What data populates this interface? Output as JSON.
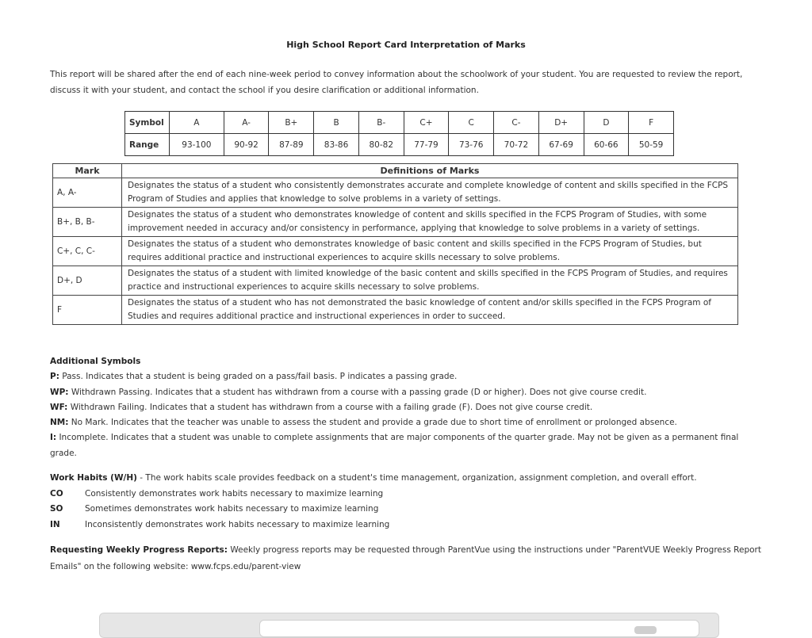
{
  "title": "High School Report Card Interpretation of Marks",
  "intro": "This report will be shared after the end of each nine-week period to convey information about the schoolwork of your student. You are requested to review the report, discuss it with your student, and contact the school if you desire clarification or additional information.",
  "grades": {
    "symbol_label": "Symbol",
    "range_label": "Range",
    "symbols": [
      "A",
      "A-",
      "B+",
      "B",
      "B-",
      "C+",
      "C",
      "C-",
      "D+",
      "D",
      "F"
    ],
    "ranges": [
      "93-100",
      "90-92",
      "87-89",
      "83-86",
      "80-82",
      "77-79",
      "73-76",
      "70-72",
      "67-69",
      "60-66",
      "50-59"
    ]
  },
  "marks": {
    "header_mark": "Mark",
    "header_def": "Definitions of Marks",
    "rows": [
      {
        "mark": "A, A-",
        "def": "Designates the status of a student who consistently demonstrates accurate and complete knowledge of content and skills specified in the FCPS Program of Studies and applies that knowledge to solve problems in a variety of settings."
      },
      {
        "mark": "B+, B, B-",
        "def": "Designates the status of a student who demonstrates knowledge of content and skills specified in the FCPS Program of Studies, with some improvement needed in accuracy and/or consistency in performance, applying that knowledge to solve problems in a variety of settings."
      },
      {
        "mark": "C+, C, C-",
        "def": "Designates the status of a student who demonstrates knowledge of basic content and skills specified in the FCPS Program of Studies, but requires additional practice and instructional experiences to acquire skills necessary to solve problems."
      },
      {
        "mark": "D+, D",
        "def": "Designates the status of a student with limited knowledge of the basic content and skills specified in the FCPS Program of Studies, and requires practice and instructional experiences to acquire skills necessary to solve problems."
      },
      {
        "mark": "F",
        "def": "Designates the status of a student who has not demonstrated the basic knowledge of content and/or skills specified in the FCPS Program of Studies and requires additional practice and instructional experiences in order to succeed."
      }
    ]
  },
  "additional": {
    "heading": "Additional Symbols",
    "items": [
      {
        "code": "P:",
        "text": " Pass. Indicates that a student is being graded on a pass/fail basis. P indicates a passing grade."
      },
      {
        "code": "WP:",
        "text": " Withdrawn Passing. Indicates that a student has withdrawn from a course with a passing grade (D or higher). Does not give course credit."
      },
      {
        "code": "WF:",
        "text": " Withdrawn Failing. Indicates that a student has withdrawn from a course with a failing grade (F). Does not give course credit."
      },
      {
        "code": "NM:",
        "text": " No Mark. Indicates that the teacher was unable to assess the student and provide a grade due to short time of enrollment or prolonged absence."
      },
      {
        "code": "I:",
        "text": " Incomplete. Indicates that a student was unable to complete assignments that are major components of the quarter grade. May not be given as a permanent final grade."
      }
    ]
  },
  "work_habits": {
    "heading": "Work Habits (W/H)",
    "intro": " - The work habits scale provides feedback on a student's time management, organization, assignment completion, and overall effort.",
    "items": [
      {
        "code": "CO",
        "text": "Consistently demonstrates work habits necessary to maximize learning"
      },
      {
        "code": "SO",
        "text": "Sometimes demonstrates work habits necessary to maximize learning"
      },
      {
        "code": "IN",
        "text": "Inconsistently demonstrates work habits necessary to maximize learning"
      }
    ]
  },
  "requesting": {
    "heading": "Requesting Weekly Progress Reports:",
    "text": " Weekly progress reports may be requested through ParentVue using the instructions under \"ParentVUE Weekly Progress Report Emails\" on the following website: www.fcps.edu/parent-view"
  }
}
